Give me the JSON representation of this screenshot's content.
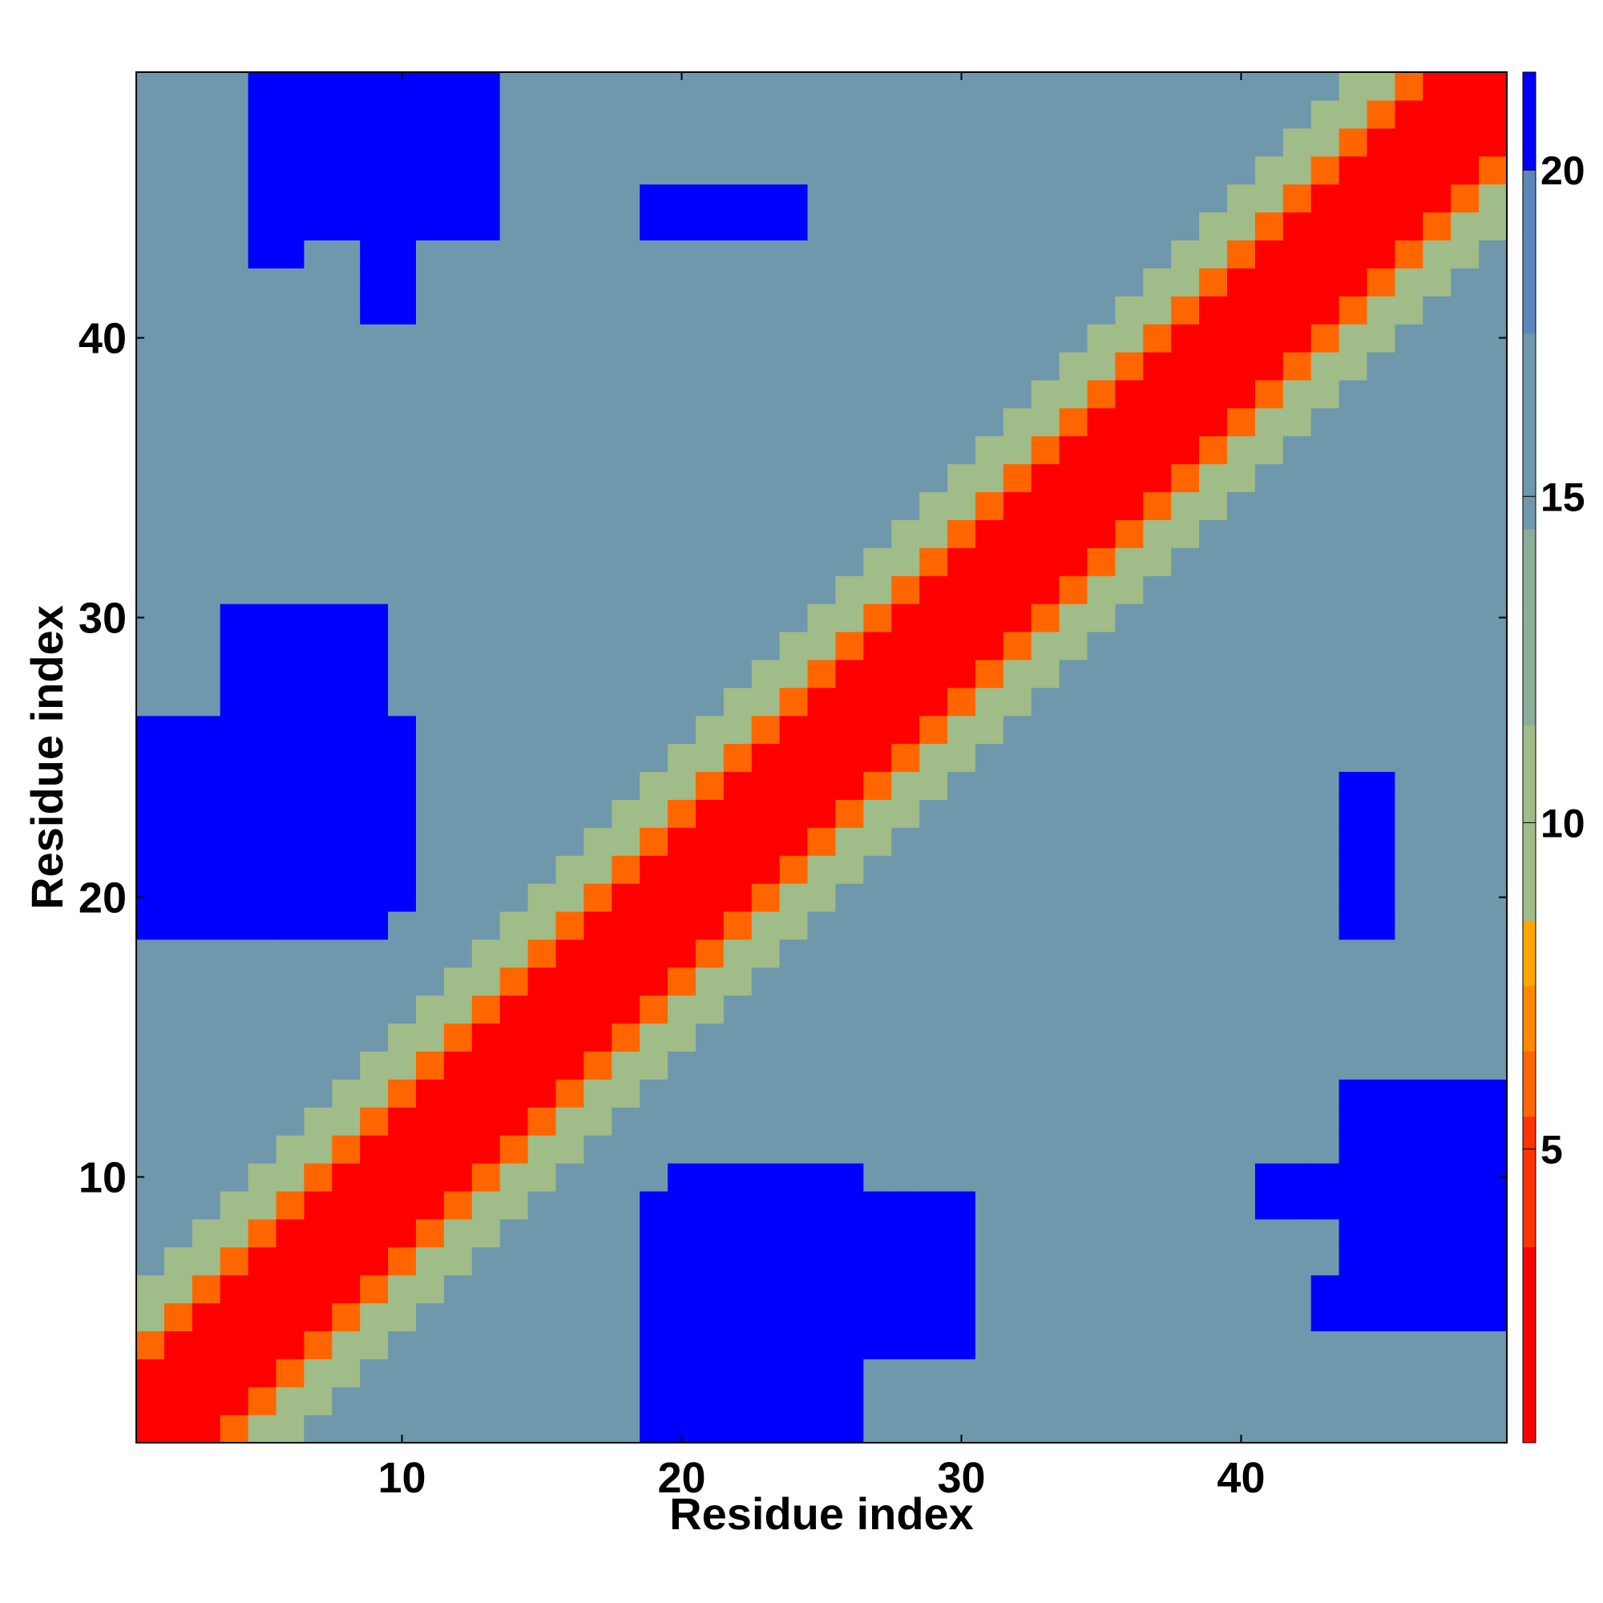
{
  "chart_data": {
    "type": "heatmap",
    "title": "",
    "xlabel": "Residue index",
    "ylabel": "Residue index",
    "n": 49,
    "xlim": [
      0.5,
      49.5
    ],
    "ylim": [
      0.5,
      49.5
    ],
    "x_ticks": [
      10,
      20,
      30,
      40
    ],
    "y_ticks": [
      10,
      20,
      30,
      40
    ],
    "colorbar": {
      "min": 0.5,
      "max": 21.5,
      "ticks": [
        5,
        10,
        15,
        20
      ],
      "levels": [
        {
          "from": 0.5,
          "to": 3.5,
          "color": "#ff0000"
        },
        {
          "from": 3.5,
          "to": 5.5,
          "color": "#ff3300"
        },
        {
          "from": 5.5,
          "to": 6.5,
          "color": "#ff6600"
        },
        {
          "from": 6.5,
          "to": 7.5,
          "color": "#ff8800"
        },
        {
          "from": 7.5,
          "to": 8.5,
          "color": "#ffa500"
        },
        {
          "from": 8.5,
          "to": 11.5,
          "color": "#a0bc88"
        },
        {
          "from": 11.5,
          "to": 14.5,
          "color": "#8aae98"
        },
        {
          "from": 14.5,
          "to": 17.5,
          "color": "#6f98ac"
        },
        {
          "from": 17.5,
          "to": 20.0,
          "color": "#5a88bc"
        },
        {
          "from": 20.0,
          "to": 21.5,
          "color": "#0000ff"
        }
      ]
    },
    "pattern": {
      "diagonal_bands": [
        {
          "max_offset": 2,
          "value": 2.0
        },
        {
          "max_offset": 3,
          "value": 6.0
        },
        {
          "max_offset": 5,
          "value": 10.0
        }
      ],
      "far_value": 16.5,
      "blue_blocks": [
        {
          "x": [
            1,
            9
          ],
          "y": [
            19,
            26
          ],
          "value": 21
        },
        {
          "x": [
            4,
            9
          ],
          "y": [
            27,
            30
          ],
          "value": 21
        },
        {
          "x": [
            20,
            26
          ],
          "y": [
            1,
            10
          ],
          "value": 21
        },
        {
          "x": [
            5,
            6
          ],
          "y": [
            43,
            49
          ],
          "value": 21
        },
        {
          "x": [
            12,
            13
          ],
          "y": [
            44,
            49
          ],
          "value": 21
        },
        {
          "x": [
            44,
            49
          ],
          "y": [
            5,
            12
          ],
          "value": 21
        },
        {
          "x": [
            44,
            45
          ],
          "y": [
            19,
            24
          ],
          "value": 21
        },
        {
          "x": [
            9,
            10
          ],
          "y": [
            41,
            48
          ],
          "value": 21
        }
      ]
    }
  }
}
